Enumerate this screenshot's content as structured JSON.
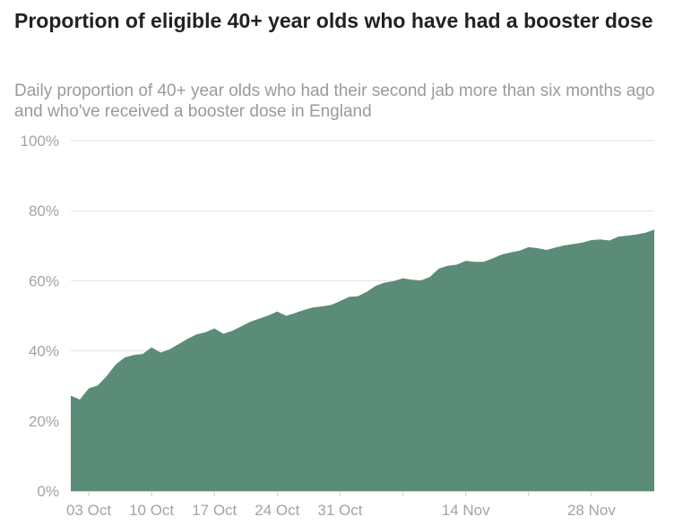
{
  "header": {
    "title": "Proportion of eligible 40+ year olds who have had a booster dose",
    "subtitle": "Daily proportion of 40+ year olds who had their second jab more than six months ago and who've received a booster dose in England"
  },
  "colors": {
    "area_fill": "#5a8c78",
    "title_text": "#222222",
    "subtitle_text": "#9a9a9a",
    "tick_text": "#a3a3a3",
    "grid": "#e2e2e2"
  },
  "chart_data": {
    "type": "area",
    "title": "Proportion of eligible 40+ year olds who have had a booster dose",
    "subtitle": "Daily proportion of 40+ year olds who had their second jab more than six months ago and who've received a booster dose in England",
    "xlabel": "",
    "ylabel": "",
    "ylim": [
      0,
      100
    ],
    "y_ticks": [
      {
        "value": 0,
        "label": "0%"
      },
      {
        "value": 20,
        "label": "20%"
      },
      {
        "value": 40,
        "label": "40%"
      },
      {
        "value": 60,
        "label": "60%"
      },
      {
        "value": 80,
        "label": "80%"
      },
      {
        "value": 100,
        "label": "100%"
      }
    ],
    "x_ticks": [
      {
        "date": "2021-10-03",
        "label": "03 Oct"
      },
      {
        "date": "2021-10-10",
        "label": "10 Oct"
      },
      {
        "date": "2021-10-17",
        "label": "17 Oct"
      },
      {
        "date": "2021-10-24",
        "label": "24 Oct"
      },
      {
        "date": "2021-10-31",
        "label": "31 Oct"
      },
      {
        "date": "2021-11-07",
        "label": ""
      },
      {
        "date": "2021-11-14",
        "label": "14 Nov"
      },
      {
        "date": "2021-11-21",
        "label": ""
      },
      {
        "date": "2021-11-28",
        "label": "28 Nov"
      }
    ],
    "grid": true,
    "legend": "none",
    "x": [
      "2021-10-01",
      "2021-10-02",
      "2021-10-03",
      "2021-10-04",
      "2021-10-05",
      "2021-10-06",
      "2021-10-07",
      "2021-10-08",
      "2021-10-09",
      "2021-10-10",
      "2021-10-11",
      "2021-10-12",
      "2021-10-13",
      "2021-10-14",
      "2021-10-15",
      "2021-10-16",
      "2021-10-17",
      "2021-10-18",
      "2021-10-19",
      "2021-10-20",
      "2021-10-21",
      "2021-10-22",
      "2021-10-23",
      "2021-10-24",
      "2021-10-25",
      "2021-10-26",
      "2021-10-27",
      "2021-10-28",
      "2021-10-29",
      "2021-10-30",
      "2021-10-31",
      "2021-11-01",
      "2021-11-02",
      "2021-11-03",
      "2021-11-04",
      "2021-11-05",
      "2021-11-06",
      "2021-11-07",
      "2021-11-08",
      "2021-11-09",
      "2021-11-10",
      "2021-11-11",
      "2021-11-12",
      "2021-11-13",
      "2021-11-14",
      "2021-11-15",
      "2021-11-16",
      "2021-11-17",
      "2021-11-18",
      "2021-11-19",
      "2021-11-20",
      "2021-11-21",
      "2021-11-22",
      "2021-11-23",
      "2021-11-24",
      "2021-11-25",
      "2021-11-26",
      "2021-11-27",
      "2021-11-28",
      "2021-11-29",
      "2021-11-30",
      "2021-12-01",
      "2021-12-02",
      "2021-12-03",
      "2021-12-04",
      "2021-12-05"
    ],
    "values": [
      27.2,
      26.1,
      29.3,
      30.1,
      32.8,
      36.1,
      38.1,
      38.8,
      39.1,
      41.0,
      39.5,
      40.4,
      41.9,
      43.4,
      44.7,
      45.3,
      46.4,
      44.9,
      45.7,
      47.0,
      48.3,
      49.2,
      50.1,
      51.2,
      50.0,
      50.8,
      51.7,
      52.4,
      52.7,
      53.1,
      54.2,
      55.4,
      55.6,
      56.9,
      58.6,
      59.5,
      59.9,
      60.7,
      60.3,
      60.1,
      61.1,
      63.5,
      64.3,
      64.6,
      65.7,
      65.4,
      65.4,
      66.4,
      67.5,
      68.1,
      68.6,
      69.6,
      69.3,
      68.8,
      69.5,
      70.1,
      70.5,
      70.9,
      71.6,
      71.8,
      71.5,
      72.6,
      72.9,
      73.2,
      73.7,
      74.6
    ]
  }
}
